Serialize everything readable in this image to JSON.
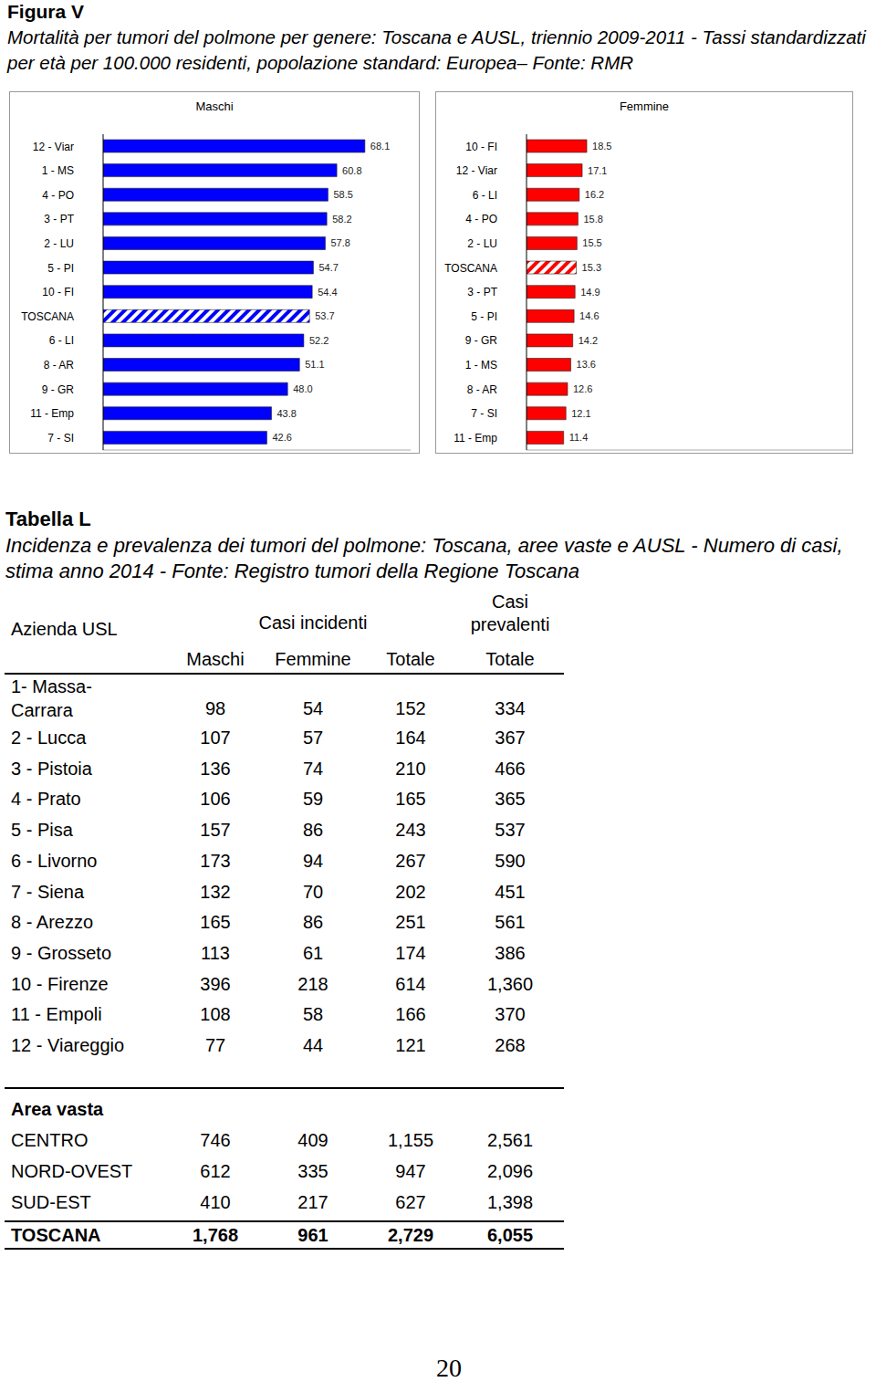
{
  "figure": {
    "label": "Figura V",
    "caption": "Mortalità per tumori del polmone per genere: Toscana e AUSL, triennio 2009-2011 - Tassi standardizzati per età per 100.000 residenti, popolazione standard: Europea– Fonte: RMR"
  },
  "chart_data": [
    {
      "type": "bar",
      "title": "Maschi",
      "orientation": "horizontal",
      "categories": [
        "12 - Viar",
        "1 - MS",
        "4 - PO",
        "3 - PT",
        "2 - LU",
        "5 - PI",
        "10 - FI",
        "TOSCANA",
        "6 - LI",
        "8 - AR",
        "9 - GR",
        "11 - Emp",
        "7 - SI"
      ],
      "values": [
        68.1,
        60.8,
        58.5,
        58.2,
        57.8,
        54.7,
        54.4,
        53.7,
        52.2,
        51.1,
        48.0,
        43.8,
        42.6
      ],
      "value_labels": [
        "68.1",
        "60.8",
        "58.5",
        "58.2",
        "57.8",
        "54.7",
        "54.4",
        "53.7",
        "52.2",
        "51.1",
        "48.0",
        "43.8",
        "42.6"
      ],
      "color": "#0000ff",
      "colors": [
        "#0000ff",
        "#0000ff",
        "#0000ff",
        "#0000ff",
        "#0000ff",
        "#0000ff",
        "#0000ff",
        "#ffffff",
        "#0000ff",
        "#0000ff",
        "#0000ff",
        "#0000ff",
        "#0000ff"
      ],
      "xlim": [
        0,
        80
      ],
      "data_labels": true,
      "tick_labels": "y"
    },
    {
      "type": "bar",
      "title": "Femmine",
      "orientation": "horizontal",
      "categories": [
        "10 - FI",
        "12 - Viar",
        "6 - LI",
        "4 - PO",
        "2 - LU",
        "TOSCANA",
        "3 - PT",
        "5 - PI",
        "9 - GR",
        "1 - MS",
        "8 - AR",
        "7 - SI",
        "11 - Emp"
      ],
      "values": [
        18.5,
        17.1,
        16.2,
        15.8,
        15.5,
        15.3,
        14.9,
        14.6,
        14.2,
        13.6,
        12.6,
        12.1,
        11.4
      ],
      "color": "#ff0000",
      "colors": [
        "#ff0000",
        "#ff0000",
        "#ff0000",
        "#ff0000",
        "#ff0000",
        "#ffffff",
        "#ff0000",
        "#ff0000",
        "#ff0000",
        "#ff0000",
        "#ff0000",
        "#ff0000",
        "#ff0000"
      ],
      "xlim": [
        0,
        100
      ],
      "data_labels": true,
      "tick_labels": "y"
    }
  ],
  "table": {
    "title": "Tabella L",
    "caption": "Incidenza e prevalenza dei tumori del polmone: Toscana, aree vaste e AUSL - Numero di casi, stima anno 2014 - Fonte: Registro tumori della Regione Toscana",
    "header": {
      "row_label": "Azienda USL",
      "groups": [
        "Casi incidenti",
        "Casi prevalenti"
      ],
      "columns": [
        "Maschi",
        "Femmine",
        "Totale",
        "Totale"
      ]
    },
    "rows": [
      [
        "1- Massa-Carrara",
        "98",
        "54",
        "152",
        "334"
      ],
      [
        "2 - Lucca",
        "107",
        "57",
        "164",
        "367"
      ],
      [
        "3 - Pistoia",
        "136",
        "74",
        "210",
        "466"
      ],
      [
        "4 - Prato",
        "106",
        "59",
        "165",
        "365"
      ],
      [
        "5 - Pisa",
        "157",
        "86",
        "243",
        "537"
      ],
      [
        "6 - Livorno",
        "173",
        "94",
        "267",
        "590"
      ],
      [
        "7 - Siena",
        "132",
        "70",
        "202",
        "451"
      ],
      [
        "8 - Arezzo",
        "165",
        "86",
        "251",
        "561"
      ],
      [
        "9 - Grosseto",
        "113",
        "61",
        "174",
        "386"
      ],
      [
        "10 - Firenze",
        "396",
        "218",
        "614",
        "1,360"
      ],
      [
        "11 - Empoli",
        "108",
        "58",
        "166",
        "370"
      ],
      [
        "12 - Viareggio",
        "77",
        "44",
        "121",
        "268"
      ]
    ],
    "section": {
      "title": "Area vasta",
      "rows": [
        [
          "CENTRO",
          "746",
          "409",
          "1,155",
          "2,561"
        ],
        [
          "NORD-OVEST",
          "612",
          "335",
          "947",
          "2,096"
        ],
        [
          "SUD-EST",
          "410",
          "217",
          "627",
          "1,398"
        ]
      ]
    },
    "total": [
      "TOSCANA",
      "1,768",
      "961",
      "2,729",
      "6,055"
    ]
  },
  "page_number": "20"
}
